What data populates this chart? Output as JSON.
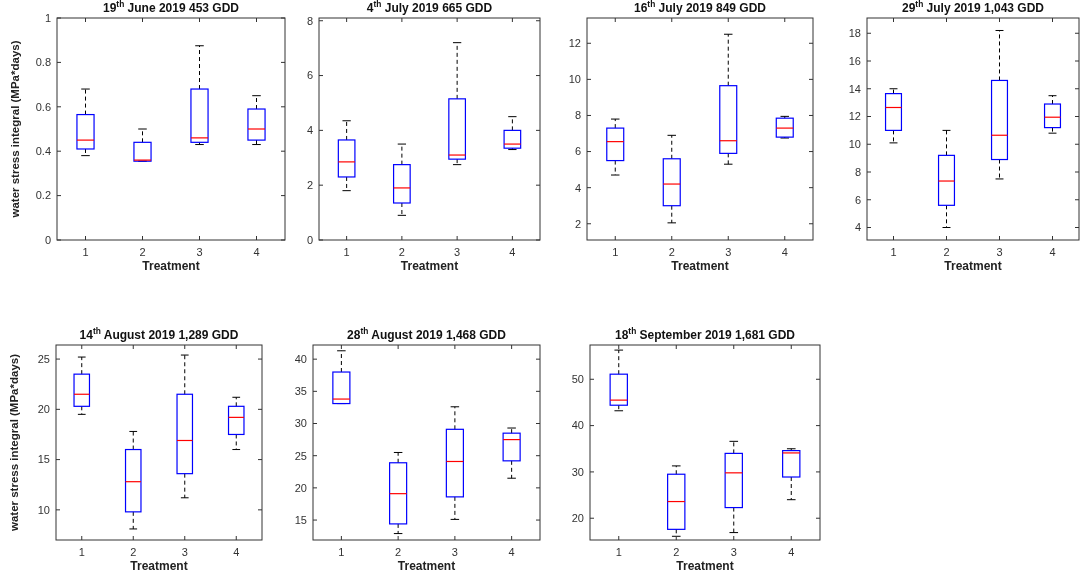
{
  "chart_data": [
    {
      "type": "box",
      "title": "19$^{th}$ June 2019  453 GDD",
      "xlabel": "Treatment",
      "ylabel": "water stress integral (MPa*days)",
      "categories": [
        "1",
        "2",
        "3",
        "4"
      ],
      "ylim": [
        0,
        1
      ],
      "yticks": [
        0,
        0.2,
        0.4,
        0.6,
        0.8,
        1
      ],
      "grid": false,
      "series": [
        {
          "color": "#0000ff",
          "boxes": [
            {
              "low": 0.38,
              "q1": 0.41,
              "median": 0.45,
              "q3": 0.565,
              "high": 0.68
            },
            {
              "low": 0.355,
              "q1": 0.355,
              "median": 0.36,
              "q3": 0.44,
              "high": 0.5
            },
            {
              "low": 0.43,
              "q1": 0.44,
              "median": 0.46,
              "q3": 0.68,
              "high": 0.875
            },
            {
              "low": 0.43,
              "q1": 0.45,
              "median": 0.5,
              "q3": 0.59,
              "high": 0.65
            }
          ]
        }
      ]
    },
    {
      "type": "box",
      "title": "4$^{th}$ July 2019  665 GDD",
      "xlabel": "Treatment",
      "categories": [
        "1",
        "2",
        "3",
        "4"
      ],
      "ylim": [
        0,
        8.1
      ],
      "yticks": [
        0,
        2,
        4,
        6,
        8
      ],
      "grid": false,
      "series": [
        {
          "color": "#0000ff",
          "boxes": [
            {
              "low": 1.8,
              "q1": 2.3,
              "median": 2.85,
              "q3": 3.65,
              "high": 4.35
            },
            {
              "low": 0.9,
              "q1": 1.35,
              "median": 1.9,
              "q3": 2.75,
              "high": 3.5
            },
            {
              "low": 2.75,
              "q1": 2.95,
              "median": 3.1,
              "q3": 5.15,
              "high": 7.2
            },
            {
              "low": 3.3,
              "q1": 3.35,
              "median": 3.5,
              "q3": 4.0,
              "high": 4.5
            }
          ]
        }
      ]
    },
    {
      "type": "box",
      "title": "16$^{th}$ July 2019  849 GDD",
      "xlabel": "Treatment",
      "categories": [
        "1",
        "2",
        "3",
        "4"
      ],
      "ylim": [
        1.1,
        13.4
      ],
      "yticks": [
        2,
        4,
        6,
        8,
        10,
        12
      ],
      "grid": false,
      "series": [
        {
          "color": "#0000ff",
          "boxes": [
            {
              "low": 4.7,
              "q1": 5.5,
              "median": 6.55,
              "q3": 7.3,
              "high": 7.8
            },
            {
              "low": 2.05,
              "q1": 3.0,
              "median": 4.2,
              "q3": 5.6,
              "high": 6.9
            },
            {
              "low": 5.3,
              "q1": 5.9,
              "median": 6.6,
              "q3": 9.65,
              "high": 12.5
            },
            {
              "low": 6.75,
              "q1": 6.8,
              "median": 7.3,
              "q3": 7.85,
              "high": 7.95
            }
          ]
        }
      ]
    },
    {
      "type": "box",
      "title": "29$^{th}$ July 2019  1,043 GDD",
      "xlabel": "Treatment",
      "categories": [
        "1",
        "2",
        "3",
        "4"
      ],
      "ylim": [
        3.1,
        19.1
      ],
      "yticks": [
        4,
        6,
        8,
        10,
        12,
        14,
        16,
        18
      ],
      "grid": false,
      "series": [
        {
          "color": "#0000ff",
          "boxes": [
            {
              "low": 10.1,
              "q1": 11.0,
              "median": 12.65,
              "q3": 13.65,
              "high": 14.0
            },
            {
              "low": 4.0,
              "q1": 5.6,
              "median": 7.35,
              "q3": 9.2,
              "high": 11.0
            },
            {
              "low": 7.5,
              "q1": 8.9,
              "median": 10.65,
              "q3": 14.6,
              "high": 18.2
            },
            {
              "low": 10.8,
              "q1": 11.2,
              "median": 11.95,
              "q3": 12.9,
              "high": 13.5
            }
          ]
        }
      ]
    },
    {
      "type": "box",
      "title": "14$^{th}$ August 2019  1,289 GDD",
      "xlabel": "Treatment",
      "ylabel": "water stress integral (MPa*days)",
      "categories": [
        "1",
        "2",
        "3",
        "4"
      ],
      "ylim": [
        7,
        26.4
      ],
      "yticks": [
        10,
        15,
        20,
        25
      ],
      "grid": false,
      "series": [
        {
          "color": "#0000ff",
          "boxes": [
            {
              "low": 19.5,
              "q1": 20.3,
              "median": 21.5,
              "q3": 23.5,
              "high": 25.2
            },
            {
              "low": 8.1,
              "q1": 9.8,
              "median": 12.8,
              "q3": 16.0,
              "high": 17.8
            },
            {
              "low": 11.2,
              "q1": 13.6,
              "median": 16.9,
              "q3": 21.5,
              "high": 25.4
            },
            {
              "low": 16.0,
              "q1": 17.5,
              "median": 19.2,
              "q3": 20.3,
              "high": 21.2
            }
          ]
        }
      ]
    },
    {
      "type": "box",
      "title": "28$^{th}$ August 2019  1,468 GDD",
      "xlabel": "Treatment",
      "categories": [
        "1",
        "2",
        "3",
        "4"
      ],
      "ylim": [
        11.9,
        42.2
      ],
      "yticks": [
        15,
        20,
        25,
        30,
        35,
        40
      ],
      "grid": false,
      "series": [
        {
          "color": "#0000ff",
          "boxes": [
            {
              "low": 33.1,
              "q1": 33.1,
              "median": 33.8,
              "q3": 38.0,
              "high": 41.3
            },
            {
              "low": 12.9,
              "q1": 14.4,
              "median": 19.1,
              "q3": 23.9,
              "high": 25.5
            },
            {
              "low": 15.1,
              "q1": 18.6,
              "median": 24.1,
              "q3": 29.1,
              "high": 32.6
            },
            {
              "low": 21.5,
              "q1": 24.2,
              "median": 27.5,
              "q3": 28.5,
              "high": 29.3
            }
          ]
        }
      ]
    },
    {
      "type": "box",
      "title": "18$^{th}$ September 2019  1,681 GDD",
      "xlabel": "Treatment",
      "categories": [
        "1",
        "2",
        "3",
        "4"
      ],
      "ylim": [
        15.3,
        57.4
      ],
      "yticks": [
        20,
        30,
        40,
        50
      ],
      "grid": false,
      "series": [
        {
          "color": "#0000ff",
          "boxes": [
            {
              "low": 43.2,
              "q1": 44.4,
              "median": 45.5,
              "q3": 51.1,
              "high": 56.3
            },
            {
              "low": 16.1,
              "q1": 17.6,
              "median": 23.6,
              "q3": 29.5,
              "high": 31.3
            },
            {
              "low": 16.9,
              "q1": 22.3,
              "median": 29.8,
              "q3": 34.0,
              "high": 36.6
            },
            {
              "low": 24.0,
              "q1": 28.9,
              "median": 34.1,
              "q3": 34.6,
              "high": 35.0
            }
          ]
        }
      ]
    }
  ]
}
